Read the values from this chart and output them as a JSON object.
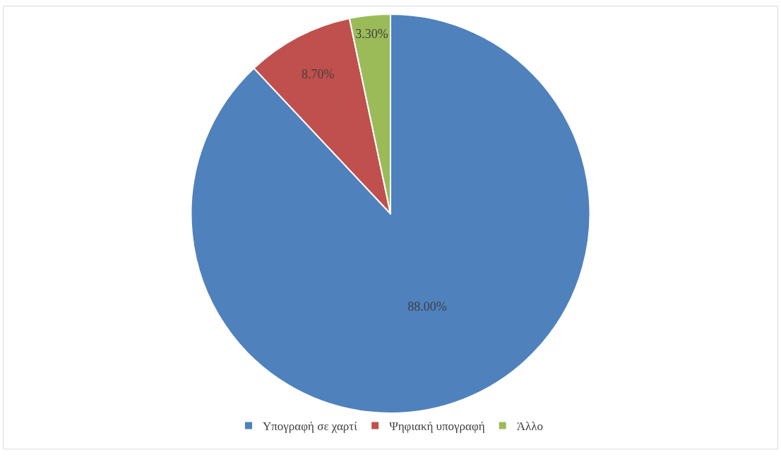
{
  "chart_data": {
    "type": "pie",
    "categories": [
      "Υπογραφή σε χαρτί",
      "Ψηφιακή υπογραφή",
      "Άλλο"
    ],
    "values": [
      88.0,
      8.7,
      3.3
    ],
    "value_labels": [
      "88.00%",
      "8.70%",
      "3.30%"
    ],
    "colors": [
      "#4f81bd",
      "#c0504d",
      "#9bbb59"
    ],
    "legend": "bottom"
  }
}
